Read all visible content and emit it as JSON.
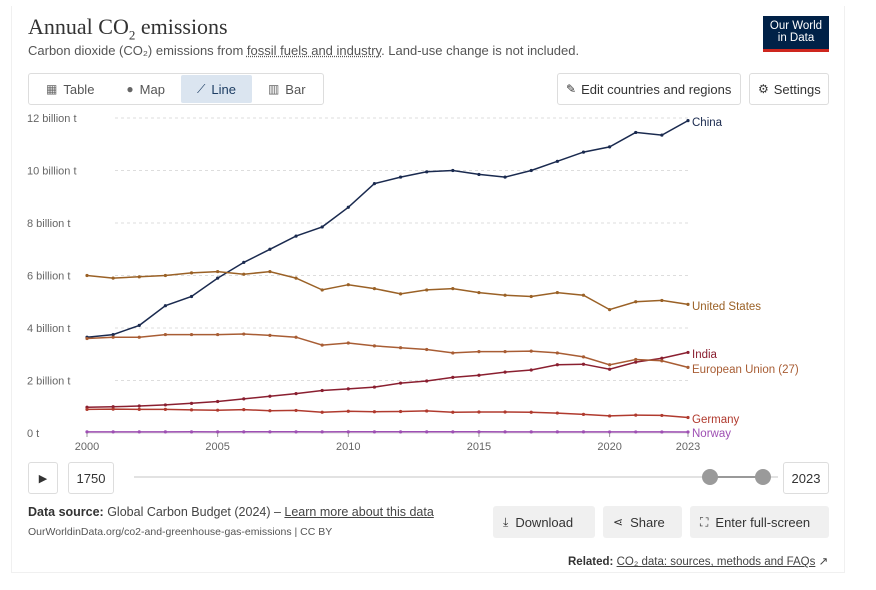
{
  "header": {
    "title_main": "Annual CO",
    "title_sub": "2",
    "title_rest": " emissions",
    "subtitle_pre": "Carbon dioxide (CO₂) emissions from ",
    "subtitle_link": "fossil fuels and industry",
    "subtitle_post": ". Land-use change is not included."
  },
  "logo": {
    "line1": "Our World",
    "line2": "in Data"
  },
  "tabs": [
    {
      "label": "Table",
      "icon": "table-icon"
    },
    {
      "label": "Map",
      "icon": "globe-icon"
    },
    {
      "label": "Line",
      "icon": "line-chart-icon"
    },
    {
      "label": "Bar",
      "icon": "bar-chart-icon"
    }
  ],
  "toolbar": {
    "edit_label": "Edit countries and regions",
    "settings_label": "Settings"
  },
  "timeline": {
    "start_label": "1750",
    "end_label": "2023"
  },
  "footer": {
    "source_label": "Data source:",
    "source_value": " Global Carbon Budget (2024) – ",
    "source_link": "Learn more about this data",
    "url": "OurWorldinData.org/co2-and-greenhouse-gas-emissions | CC BY",
    "download_label": "Download",
    "share_label": "Share",
    "fullscreen_label": "Enter full-screen",
    "related_label": "Related:",
    "related_link": "CO₂ data: sources, methods and FAQs"
  },
  "chart_data": {
    "type": "line",
    "title": "Annual CO₂ emissions",
    "xlabel": "",
    "ylabel": "",
    "xlim": [
      2000,
      2023
    ],
    "ylim": [
      0,
      12
    ],
    "x_ticks": [
      2000,
      2005,
      2010,
      2015,
      2020,
      2023
    ],
    "y_ticks": [
      {
        "value": 0,
        "label": "0 t"
      },
      {
        "value": 2,
        "label": "2 billion t"
      },
      {
        "value": 4,
        "label": "4 billion t"
      },
      {
        "value": 6,
        "label": "6 billion t"
      },
      {
        "value": 8,
        "label": "8 billion t"
      },
      {
        "value": 10,
        "label": "10 billion t"
      },
      {
        "value": 12,
        "label": "12 billion t"
      }
    ],
    "grid": true,
    "x": [
      2000,
      2001,
      2002,
      2003,
      2004,
      2005,
      2006,
      2007,
      2008,
      2009,
      2010,
      2011,
      2012,
      2013,
      2014,
      2015,
      2016,
      2017,
      2018,
      2019,
      2020,
      2021,
      2022,
      2023
    ],
    "series": [
      {
        "name": "China",
        "color": "#1a2a4f",
        "values": [
          3.65,
          3.75,
          4.1,
          4.85,
          5.2,
          5.9,
          6.5,
          7.0,
          7.5,
          7.85,
          8.6,
          9.5,
          9.75,
          9.95,
          10.0,
          9.85,
          9.75,
          10.0,
          10.35,
          10.7,
          10.9,
          11.45,
          11.35,
          11.9
        ]
      },
      {
        "name": "United States",
        "color": "#9a6126",
        "values": [
          6.0,
          5.9,
          5.95,
          6.0,
          6.1,
          6.15,
          6.05,
          6.15,
          5.9,
          5.45,
          5.65,
          5.5,
          5.3,
          5.45,
          5.5,
          5.35,
          5.25,
          5.2,
          5.35,
          5.25,
          4.7,
          5.0,
          5.05,
          4.9
        ]
      },
      {
        "name": "India",
        "color": "#8a1f30",
        "values": [
          0.98,
          1.0,
          1.03,
          1.07,
          1.13,
          1.2,
          1.3,
          1.4,
          1.5,
          1.62,
          1.68,
          1.75,
          1.9,
          1.98,
          2.12,
          2.2,
          2.32,
          2.4,
          2.6,
          2.62,
          2.43,
          2.7,
          2.85,
          3.07
        ]
      },
      {
        "name": "European Union (27)",
        "color": "#a85d34",
        "values": [
          3.6,
          3.65,
          3.65,
          3.75,
          3.75,
          3.75,
          3.77,
          3.72,
          3.65,
          3.35,
          3.43,
          3.32,
          3.25,
          3.18,
          3.05,
          3.1,
          3.1,
          3.12,
          3.05,
          2.9,
          2.6,
          2.8,
          2.75,
          2.5
        ]
      },
      {
        "name": "Germany",
        "color": "#b03a2e",
        "values": [
          0.9,
          0.91,
          0.9,
          0.9,
          0.88,
          0.87,
          0.89,
          0.85,
          0.86,
          0.79,
          0.83,
          0.81,
          0.82,
          0.84,
          0.79,
          0.8,
          0.8,
          0.79,
          0.76,
          0.71,
          0.65,
          0.68,
          0.67,
          0.59
        ]
      },
      {
        "name": "Norway",
        "color": "#9e4fb3",
        "values": [
          0.042,
          0.043,
          0.042,
          0.043,
          0.044,
          0.043,
          0.044,
          0.045,
          0.044,
          0.043,
          0.045,
          0.044,
          0.044,
          0.044,
          0.044,
          0.044,
          0.043,
          0.043,
          0.043,
          0.042,
          0.041,
          0.041,
          0.04,
          0.039
        ]
      }
    ]
  }
}
